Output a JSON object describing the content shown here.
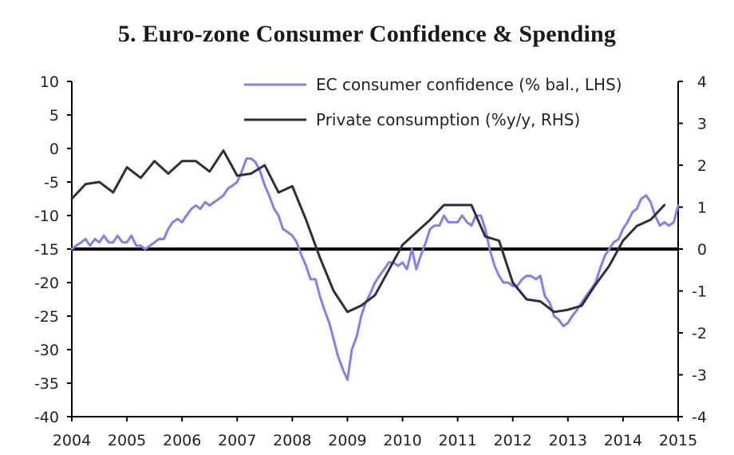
{
  "chart_data": {
    "type": "line",
    "title": "5. Euro-zone Consumer Confidence & Spending",
    "x_axis": {
      "range": [
        2004,
        2015
      ],
      "ticks": [
        "2004",
        "2005",
        "2006",
        "2007",
        "2008",
        "2009",
        "2010",
        "2011",
        "2012",
        "2013",
        "2014",
        "2015"
      ]
    },
    "y_left": {
      "range": [
        -40,
        10
      ],
      "ticks": [
        "10",
        "5",
        "0",
        "-5",
        "-10",
        "-15",
        "-20",
        "-25",
        "-30",
        "-35",
        "-40"
      ]
    },
    "y_right": {
      "range": [
        -4,
        4
      ],
      "ticks": [
        "4",
        "3",
        "2",
        "1",
        "0",
        "-1",
        "-2",
        "-3",
        "-4"
      ]
    },
    "baseline": {
      "axis": "right",
      "value": 0
    },
    "legend_position": "top-right",
    "colors": {
      "confidence": "#8080ee",
      "consumption": "#2e2e3e",
      "baseline": "#000000"
    },
    "series": [
      {
        "name": "EC consumer confidence (% bal., LHS)",
        "axis": "left",
        "x": [
          2004.0,
          2004.08,
          2004.17,
          2004.25,
          2004.33,
          2004.42,
          2004.5,
          2004.58,
          2004.67,
          2004.75,
          2004.83,
          2004.92,
          2005.0,
          2005.08,
          2005.17,
          2005.25,
          2005.33,
          2005.42,
          2005.5,
          2005.58,
          2005.67,
          2005.75,
          2005.83,
          2005.92,
          2006.0,
          2006.08,
          2006.17,
          2006.25,
          2006.33,
          2006.42,
          2006.5,
          2006.58,
          2006.67,
          2006.75,
          2006.83,
          2006.92,
          2007.0,
          2007.08,
          2007.17,
          2007.25,
          2007.33,
          2007.42,
          2007.5,
          2007.58,
          2007.67,
          2007.75,
          2007.83,
          2007.92,
          2008.0,
          2008.08,
          2008.17,
          2008.25,
          2008.33,
          2008.42,
          2008.5,
          2008.58,
          2008.67,
          2008.75,
          2008.83,
          2008.92,
          2009.0,
          2009.08,
          2009.17,
          2009.25,
          2009.33,
          2009.42,
          2009.5,
          2009.58,
          2009.67,
          2009.75,
          2009.83,
          2009.92,
          2010.0,
          2010.08,
          2010.17,
          2010.25,
          2010.33,
          2010.42,
          2010.5,
          2010.58,
          2010.67,
          2010.75,
          2010.83,
          2010.92,
          2011.0,
          2011.08,
          2011.17,
          2011.25,
          2011.33,
          2011.42,
          2011.5,
          2011.58,
          2011.67,
          2011.75,
          2011.83,
          2011.92,
          2012.0,
          2012.08,
          2012.17,
          2012.25,
          2012.33,
          2012.42,
          2012.5,
          2012.58,
          2012.67,
          2012.75,
          2012.83,
          2012.92,
          2013.0,
          2013.08,
          2013.17,
          2013.25,
          2013.33,
          2013.42,
          2013.5,
          2013.58,
          2013.67,
          2013.75,
          2013.83,
          2013.92,
          2014.0,
          2014.08,
          2014.17,
          2014.25,
          2014.33,
          2014.42,
          2014.5,
          2014.58,
          2014.67,
          2014.75,
          2014.83,
          2014.92,
          2015.0
        ],
        "values": [
          -15,
          -14.5,
          -14,
          -13.5,
          -14.5,
          -13.5,
          -14,
          -13,
          -14,
          -14,
          -13,
          -14,
          -14,
          -13,
          -14.5,
          -14.5,
          -15,
          -14.5,
          -14,
          -13.5,
          -13.5,
          -12,
          -11,
          -10.5,
          -11,
          -10,
          -9,
          -8.5,
          -9,
          -8,
          -8.5,
          -8,
          -7.5,
          -7,
          -6,
          -5.5,
          -5,
          -3.5,
          -1.5,
          -1.5,
          -2,
          -3.5,
          -5.5,
          -7,
          -9,
          -10,
          -12,
          -12.5,
          -13,
          -14,
          -16,
          -17.5,
          -19.5,
          -19.5,
          -22,
          -24,
          -26,
          -28.5,
          -31,
          -33,
          -34.5,
          -30,
          -28,
          -25,
          -23,
          -21.5,
          -20,
          -19,
          -18,
          -17,
          -17,
          -17.5,
          -17,
          -18,
          -15,
          -18,
          -16,
          -14,
          -12,
          -11.5,
          -11.5,
          -10,
          -11,
          -11,
          -11,
          -10,
          -11,
          -11.5,
          -10,
          -10,
          -12,
          -15,
          -17.5,
          -19,
          -20,
          -20,
          -20.5,
          -20.5,
          -19.5,
          -19,
          -19,
          -19.5,
          -19,
          -22,
          -23,
          -25,
          -25.5,
          -26.5,
          -26,
          -25,
          -24,
          -23,
          -22,
          -21,
          -20,
          -18,
          -16,
          -15,
          -14,
          -13.5,
          -12,
          -11,
          -9.5,
          -9,
          -7.5,
          -7,
          -8,
          -10,
          -11.5,
          -11,
          -11.5,
          -11,
          -8.5
        ]
      },
      {
        "name": "Private consumption (%y/y, RHS)",
        "axis": "right",
        "x": [
          2004.0,
          2004.25,
          2004.5,
          2004.75,
          2005.0,
          2005.25,
          2005.5,
          2005.75,
          2006.0,
          2006.25,
          2006.5,
          2006.75,
          2007.0,
          2007.25,
          2007.5,
          2007.75,
          2008.0,
          2008.25,
          2008.5,
          2008.75,
          2009.0,
          2009.25,
          2009.5,
          2009.75,
          2010.0,
          2010.25,
          2010.5,
          2010.75,
          2011.0,
          2011.25,
          2011.5,
          2011.75,
          2012.0,
          2012.25,
          2012.5,
          2012.75,
          2013.0,
          2013.25,
          2013.5,
          2013.75,
          2014.0,
          2014.25,
          2014.5,
          2014.75
        ],
        "values": [
          1.2,
          1.55,
          1.6,
          1.35,
          1.95,
          1.7,
          2.1,
          1.8,
          2.1,
          2.1,
          1.85,
          2.35,
          1.75,
          1.8,
          2.0,
          1.35,
          1.5,
          0.7,
          -0.2,
          -1.0,
          -1.5,
          -1.35,
          -1.1,
          -0.5,
          0.1,
          0.4,
          0.7,
          1.05,
          1.05,
          1.05,
          0.3,
          0.2,
          -0.8,
          -1.2,
          -1.25,
          -1.5,
          -1.45,
          -1.35,
          -0.85,
          -0.4,
          0.2,
          0.55,
          0.7,
          1.05
        ]
      }
    ]
  }
}
